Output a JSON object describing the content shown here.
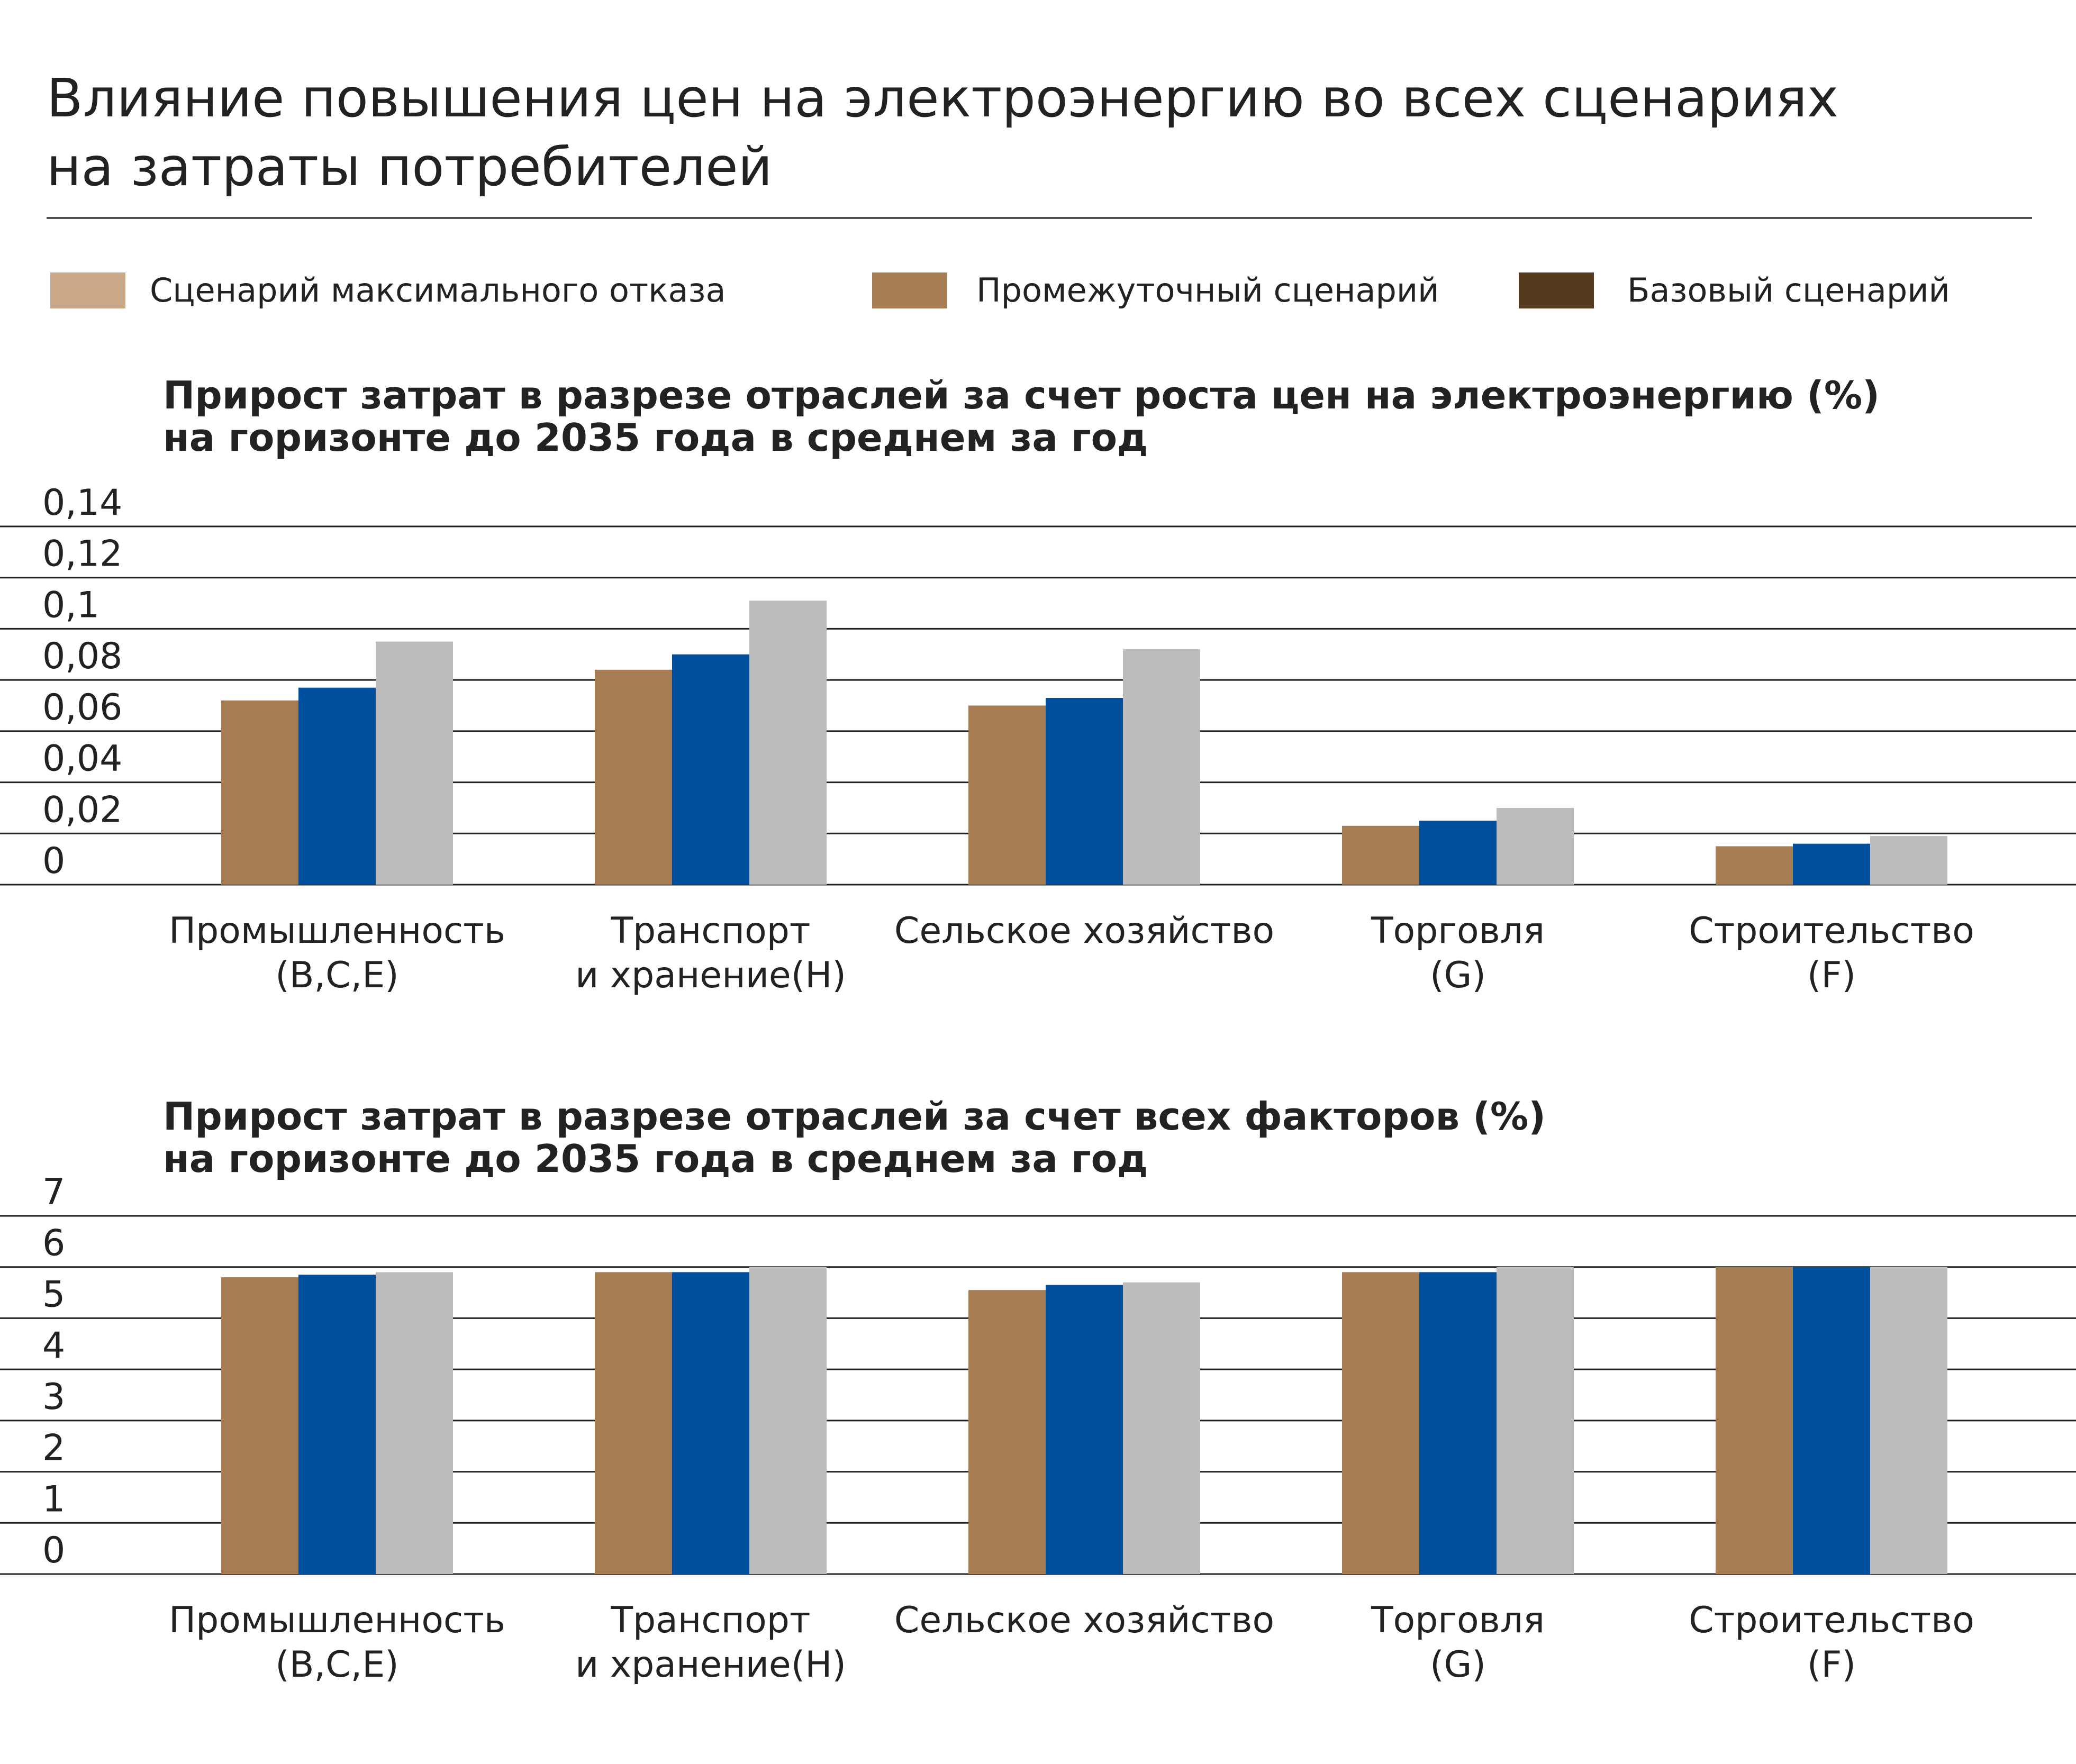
{
  "header": {
    "title": [
      "Влияние повышения цен на электроэнергию во всех сценариях",
      "на затраты потребителей"
    ]
  },
  "legend": [
    {
      "label": "Сценарий максимального отказа",
      "color": "#c9a98a"
    },
    {
      "label": "Промежуточный сценарий",
      "color": "#a67c52"
    },
    {
      "label": "Базовый сценарий",
      "color": "#553a20"
    }
  ],
  "chart_data": [
    {
      "type": "bar",
      "title": [
        "Прирост затрат в разрезе отраслей за счет роста цен на электроэнергию (%)",
        "на горизонте до 2035 года в среднем за год"
      ],
      "categories": [
        [
          "Промышленность",
          "(B,C,E)"
        ],
        [
          "Транспорт",
          "и хранение(H)"
        ],
        [
          "Сельское хозяйство"
        ],
        [
          "Торговля",
          "(G)"
        ],
        [
          "Строительство",
          "(F)"
        ]
      ],
      "series": [
        {
          "color": "#a67c52",
          "values": [
            0.072,
            0.084,
            0.07,
            0.023,
            0.015
          ]
        },
        {
          "color": "#00509e",
          "values": [
            0.077,
            0.09,
            0.073,
            0.025,
            0.016
          ]
        },
        {
          "color": "#bcbcbc",
          "values": [
            0.095,
            0.111,
            0.092,
            0.03,
            0.019
          ]
        }
      ],
      "ylim": [
        0,
        0.14
      ],
      "yticks": [
        0,
        {
          "value": 0.02,
          "label": "0,02"
        },
        {
          "value": 0.04,
          "label": "0,04"
        },
        {
          "value": 0.06,
          "label": "0,06"
        },
        {
          "value": 0.08,
          "label": "0,08"
        },
        {
          "value": 0.1,
          "label": "0,1"
        },
        {
          "value": 0.12,
          "label": "0,12"
        },
        {
          "value": 0.14,
          "label": "0,14"
        }
      ],
      "grid": true
    },
    {
      "type": "bar",
      "title": [
        "Прирост затрат в разрезе отраслей за счет всех факторов (%)",
        "на горизонте до 2035 года в среднем за год"
      ],
      "categories": [
        [
          "Промышленность",
          "(B,C,E)"
        ],
        [
          "Транспорт",
          "и хранение(H)"
        ],
        [
          "Сельское хозяйство"
        ],
        [
          "Торговля",
          "(G)"
        ],
        [
          "Строительство",
          "(F)"
        ]
      ],
      "series": [
        {
          "color": "#a67c52",
          "values": [
            5.8,
            5.9,
            5.55,
            5.9,
            6.0
          ]
        },
        {
          "color": "#00509e",
          "values": [
            5.85,
            5.9,
            5.65,
            5.9,
            6.0
          ]
        },
        {
          "color": "#bcbcbc",
          "values": [
            5.9,
            6.0,
            5.7,
            6.0,
            6.0
          ]
        }
      ],
      "ylim": [
        0,
        7
      ],
      "yticks": [
        0,
        1,
        2,
        3,
        4,
        5,
        6,
        7
      ],
      "grid": true
    }
  ]
}
